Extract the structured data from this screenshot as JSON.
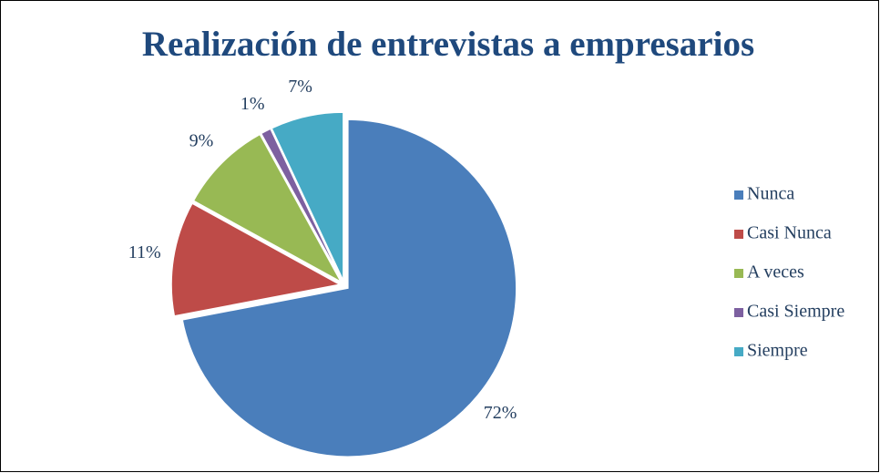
{
  "chart_data": {
    "type": "pie",
    "title": "Realización de entrevistas a empresarios",
    "categories": [
      "Nunca",
      "Casi Nunca",
      "A veces",
      "Casi Siempre",
      "Siempre"
    ],
    "values": [
      72,
      11,
      9,
      1,
      7
    ],
    "value_labels": [
      "72%",
      "11%",
      "9%",
      "1%",
      "7%"
    ],
    "colors": [
      "#4a7ebb",
      "#be4b48",
      "#98b954",
      "#7d60a0",
      "#46aac5"
    ],
    "legend": "right"
  }
}
